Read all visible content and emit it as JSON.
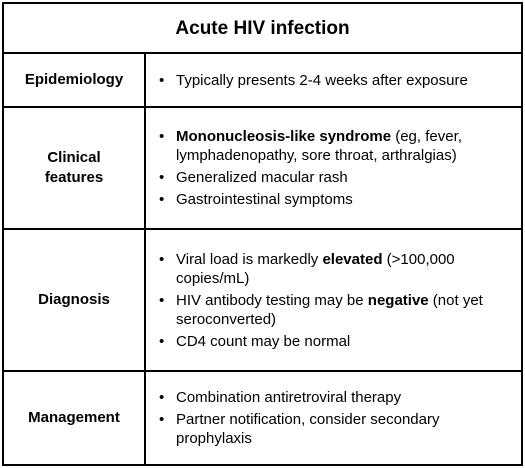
{
  "title": "Acute HIV infection",
  "rows": [
    {
      "header": "Epidemiology",
      "items": [
        {
          "text": "Typically presents 2-4 weeks after exposure"
        }
      ]
    },
    {
      "header_line1": "Clinical",
      "header_line2": "features",
      "items": [
        {
          "bold": "Mononucleosis-like syndrome",
          "text": " (eg, fever, lymphadenopathy, sore throat, arthralgias)"
        },
        {
          "text": "Generalized macular rash"
        },
        {
          "text": "Gastrointestinal symptoms"
        }
      ]
    },
    {
      "header": "Diagnosis",
      "items": [
        {
          "pre": "Viral load is markedly ",
          "bold": "elevated",
          "text": " (>100,000 copies/mL)"
        },
        {
          "pre": "HIV antibody testing may be ",
          "bold": "negative",
          "text": " (not yet seroconverted)"
        },
        {
          "text": "CD4 count may be normal"
        }
      ]
    },
    {
      "header": "Management",
      "items": [
        {
          "text": "Combination antiretroviral therapy"
        },
        {
          "text": "Partner notification, consider secondary prophylaxis"
        }
      ]
    }
  ]
}
